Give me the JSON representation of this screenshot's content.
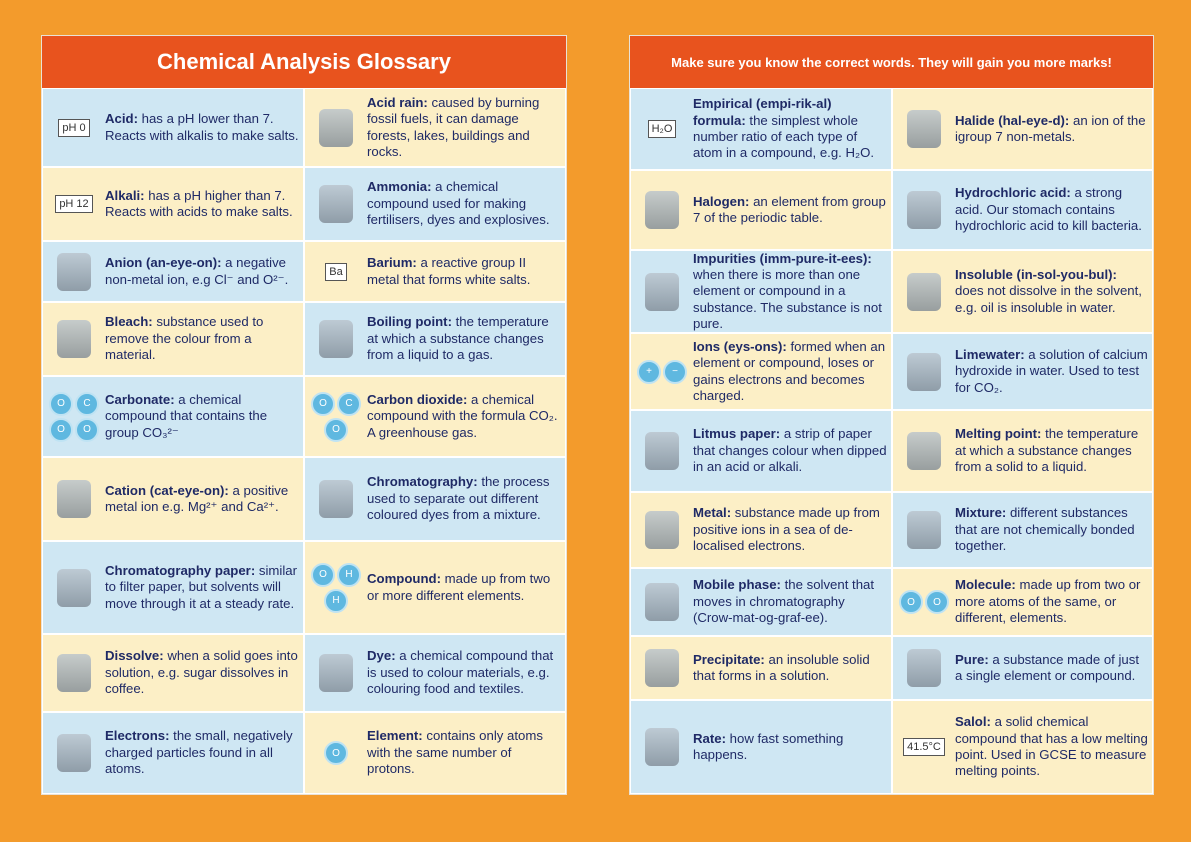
{
  "left_page": {
    "title": "Chemical Analysis Glossary",
    "left_column": [
      {
        "term": "Acid:",
        "definition": "has a pH lower than 7. Reacts with alkalis to make salts.",
        "icon_labels": [
          "pH 0"
        ]
      },
      {
        "term": "Alkali:",
        "definition": "has a pH higher than 7. Reacts with acids to make salts.",
        "icon_labels": [
          "pH 12"
        ]
      },
      {
        "term": "Anion (an-eye-on):",
        "definition": "a negative non-metal ion, e.g Cl⁻ and O²⁻."
      },
      {
        "term": "Bleach:",
        "definition": "substance used to remove the colour from a material."
      },
      {
        "term": "Carbonate:",
        "definition": "a chemical compound that contains the group CO₃²⁻",
        "icon_labels": [
          "O",
          "C",
          "O",
          "O"
        ]
      },
      {
        "term": "Cation (cat-eye-on):",
        "definition": "a positive metal ion e.g. Mg²⁺ and Ca²⁺."
      },
      {
        "term": "Chromatography paper:",
        "definition": "similar to filter paper, but solvents will move through it at a steady rate."
      },
      {
        "term": "Dissolve:",
        "definition": "when a solid goes into solution, e.g. sugar dissolves in coffee."
      },
      {
        "term": "Electrons:",
        "definition": "the small, negatively charged particles found in all atoms."
      }
    ],
    "right_column": [
      {
        "term": "Acid rain:",
        "definition": "caused by burning fossil fuels, it can damage forests, lakes, buildings and rocks."
      },
      {
        "term": "Ammonia:",
        "definition": "a chemical compound used for making fertilisers, dyes and explosives."
      },
      {
        "term": "Barium:",
        "definition": "a reactive group II metal that forms white salts.",
        "icon_labels": [
          "Ba"
        ]
      },
      {
        "term": "Boiling point:",
        "definition": "the temperature at which a substance changes from a liquid to a gas."
      },
      {
        "term": "Carbon dioxide:",
        "definition": "a chemical compound with the formula CO₂. A greenhouse gas.",
        "icon_labels": [
          "O",
          "C",
          "O"
        ]
      },
      {
        "term": "Chromatography:",
        "definition": "the process used to separate out different coloured dyes from a mixture."
      },
      {
        "term": "Compound:",
        "definition": "made up from two or more different elements.",
        "icon_labels": [
          "O",
          "H",
          "H"
        ]
      },
      {
        "term": "Dye:",
        "definition": "a chemical compound that is used to colour materials, e.g. colouring food and textiles."
      },
      {
        "term": "Element:",
        "definition": "contains only atoms with the same number of protons.",
        "icon_labels": [
          "O"
        ]
      }
    ]
  },
  "right_page": {
    "title": "Make sure you know the correct words. They will gain you more marks!",
    "left_column": [
      {
        "term": "Empirical (empi-rik-al) formula:",
        "definition": "the simplest whole number ratio of each type of atom in a compound, e.g. H₂O.",
        "icon_labels": [
          "H₂O"
        ]
      },
      {
        "term": "Halogen:",
        "definition": "an element from group 7 of the periodic table."
      },
      {
        "term": "Impurities (imm-pure-it-ees):",
        "definition": "when there is more than one element or compound in a substance. The substance is not pure."
      },
      {
        "term": "Ions (eys-ons):",
        "definition": "formed when an element or compound, loses or gains electrons and becomes charged.",
        "icon_labels": [
          "+",
          "−"
        ]
      },
      {
        "term": "Litmus paper:",
        "definition": "a strip of paper that changes colour when dipped in an acid or alkali."
      },
      {
        "term": "Metal:",
        "definition": "substance made up from positive ions in a sea of de-localised electrons."
      },
      {
        "term": "Mobile phase:",
        "definition": "the solvent that moves in chromatography (Crow-mat-og-graf-ee)."
      },
      {
        "term": "Precipitate:",
        "definition": "an insoluble solid that forms in a solution."
      },
      {
        "term": "Rate:",
        "definition": "how fast something happens."
      }
    ],
    "right_column": [
      {
        "term": "Halide (hal-eye-d):",
        "definition": "an ion of the igroup 7 non-metals."
      },
      {
        "term": "Hydrochloric acid:",
        "definition": "a strong acid. Our stomach contains hydrochloric acid to kill bacteria."
      },
      {
        "term": "Insoluble (in-sol-you-bul):",
        "definition": "does not dissolve in the solvent, e.g. oil is insoluble in water."
      },
      {
        "term": "Limewater:",
        "definition": "a solution of calcium hydroxide in water. Used to test for CO₂."
      },
      {
        "term": "Melting point:",
        "definition": "the temperature at which a substance changes from a solid to a liquid."
      },
      {
        "term": "Mixture:",
        "definition": "different substances that are not chemically bonded together."
      },
      {
        "term": "Molecule:",
        "definition": "made up from two or more atoms of the same, or different, elements.",
        "icon_labels": [
          "O",
          "O"
        ]
      },
      {
        "term": "Pure:",
        "definition": "a substance made of just a single element or compound."
      },
      {
        "term": "Salol:",
        "definition": "a solid chemical compound that has a low melting point. Used in GCSE to measure melting points.",
        "icon_labels": [
          "41.5°C"
        ]
      }
    ]
  }
}
